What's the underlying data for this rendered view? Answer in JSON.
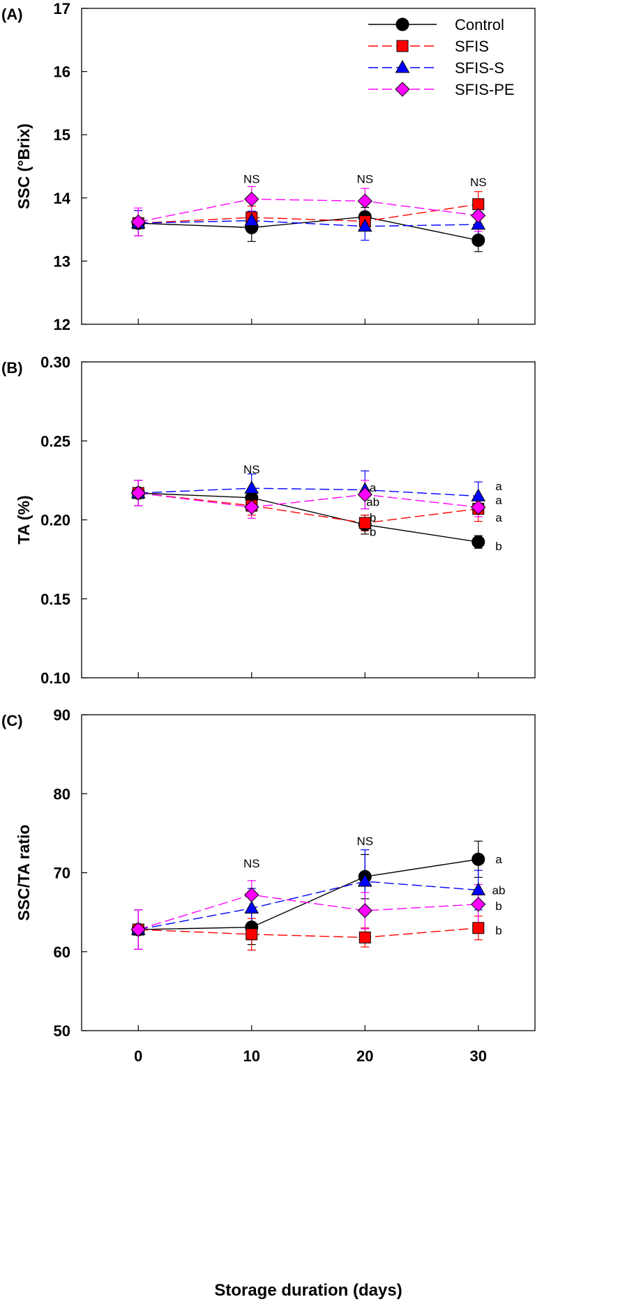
{
  "figure": {
    "xlabel": "Storage duration (days)",
    "legend": {
      "placement": "top-right",
      "entries": [
        {
          "label": "Control",
          "color": "#000000",
          "fill": "#000000",
          "marker": "circle",
          "dash": "solid"
        },
        {
          "label": "SFIS",
          "color": "#ff0000",
          "fill": "#ff0000",
          "marker": "square",
          "dash": "dashed"
        },
        {
          "label": "SFIS-S",
          "color": "#0000ff",
          "fill": "#0000ff",
          "marker": "triangle",
          "dash": "dashed"
        },
        {
          "label": "SFIS-PE",
          "color": "#ff00ff",
          "fill": "#ff00ff",
          "marker": "diamond",
          "dash": "dashed"
        }
      ]
    }
  },
  "chart_data": [
    {
      "type": "line",
      "panel_label": "(A)",
      "ylabel": "SSC (°Brix)",
      "xlabel": "",
      "x": [
        0,
        10,
        20,
        30
      ],
      "xlim": [
        -5,
        35
      ],
      "ylim": [
        12,
        17
      ],
      "xticks": [
        0,
        10,
        20,
        30
      ],
      "yticks": [
        12,
        13,
        14,
        15,
        16,
        17
      ],
      "ytick_labels": [
        "12",
        "13",
        "14",
        "15",
        "16",
        "17"
      ],
      "grid": false,
      "series": [
        {
          "name": "Control",
          "values": [
            13.6,
            13.53,
            13.7,
            13.33
          ],
          "errors": [
            0.2,
            0.22,
            0.15,
            0.18
          ]
        },
        {
          "name": "SFIS",
          "values": [
            13.6,
            13.69,
            13.63,
            13.9
          ],
          "errors": [
            0.2,
            0.18,
            0.15,
            0.2
          ]
        },
        {
          "name": "SFIS-S",
          "values": [
            13.6,
            13.64,
            13.55,
            13.58
          ],
          "errors": [
            0.2,
            0.15,
            0.22,
            0.2
          ]
        },
        {
          "name": "SFIS-PE",
          "values": [
            13.62,
            13.98,
            13.95,
            13.72
          ],
          "errors": [
            0.22,
            0.2,
            0.2,
            0.25
          ]
        }
      ],
      "annotations": [
        {
          "x": 10,
          "y": 14.3,
          "text": "NS"
        },
        {
          "x": 20,
          "y": 14.3,
          "text": "NS"
        },
        {
          "x": 30,
          "y": 14.25,
          "text": "NS"
        }
      ]
    },
    {
      "type": "line",
      "panel_label": "(B)",
      "ylabel": "TA (%)",
      "xlabel": "",
      "x": [
        0,
        10,
        20,
        30
      ],
      "xlim": [
        -5,
        35
      ],
      "ylim": [
        0.1,
        0.3
      ],
      "xticks": [
        0,
        10,
        20,
        30
      ],
      "yticks": [
        0.1,
        0.15,
        0.2,
        0.25,
        0.3
      ],
      "ytick_labels": [
        "0.10",
        "0.15",
        "0.20",
        "0.25",
        "0.30"
      ],
      "grid": false,
      "series": [
        {
          "name": "Control",
          "values": [
            0.217,
            0.214,
            0.197,
            0.186
          ],
          "errors": [
            0.008,
            0.006,
            0.006,
            0.004
          ]
        },
        {
          "name": "SFIS",
          "values": [
            0.217,
            0.209,
            0.198,
            0.207
          ],
          "errors": [
            0.008,
            0.006,
            0.005,
            0.008
          ]
        },
        {
          "name": "SFIS-S",
          "values": [
            0.217,
            0.22,
            0.219,
            0.215
          ],
          "errors": [
            0.008,
            0.009,
            0.012,
            0.009
          ]
        },
        {
          "name": "SFIS-PE",
          "values": [
            0.217,
            0.208,
            0.216,
            0.208
          ],
          "errors": [
            0.008,
            0.007,
            0.009,
            0.006
          ]
        }
      ],
      "annotations": [
        {
          "x": 10,
          "y": 0.232,
          "text": "NS"
        },
        {
          "x": 20.7,
          "y": 0.2205,
          "text": "a"
        },
        {
          "x": 20.7,
          "y": 0.2115,
          "text": "ab"
        },
        {
          "x": 20.7,
          "y": 0.2015,
          "text": "b"
        },
        {
          "x": 20.7,
          "y": 0.1925,
          "text": "b"
        },
        {
          "x": 31.8,
          "y": 0.2215,
          "text": "a"
        },
        {
          "x": 31.8,
          "y": 0.2125,
          "text": "a"
        },
        {
          "x": 31.8,
          "y": 0.2015,
          "text": "a"
        },
        {
          "x": 31.8,
          "y": 0.1835,
          "text": "b"
        }
      ]
    },
    {
      "type": "line",
      "panel_label": "(C)",
      "ylabel": "SSC/TA ratio",
      "xlabel": "Storage duration (days)",
      "x": [
        0,
        10,
        20,
        30
      ],
      "xlim": [
        -5,
        35
      ],
      "ylim": [
        50,
        90
      ],
      "xticks": [
        0,
        10,
        20,
        30
      ],
      "yticks": [
        50,
        60,
        70,
        80,
        90
      ],
      "ytick_labels": [
        "50",
        "60",
        "70",
        "80",
        "90"
      ],
      "grid": false,
      "series": [
        {
          "name": "Control",
          "values": [
            62.8,
            63.1,
            69.5,
            71.7
          ],
          "errors": [
            2.5,
            2.2,
            2.8,
            2.3
          ]
        },
        {
          "name": "SFIS",
          "values": [
            62.8,
            62.2,
            61.8,
            63.0
          ],
          "errors": [
            2.5,
            2.0,
            1.2,
            1.5
          ]
        },
        {
          "name": "SFIS-S",
          "values": [
            62.8,
            65.5,
            68.9,
            67.8
          ],
          "errors": [
            2.5,
            2.5,
            4.0,
            2.5
          ]
        },
        {
          "name": "SFIS-PE",
          "values": [
            62.8,
            67.2,
            65.2,
            66.0
          ],
          "errors": [
            2.5,
            1.8,
            2.3,
            2.5
          ]
        }
      ],
      "annotations": [
        {
          "x": 10,
          "y": 71.2,
          "text": "NS"
        },
        {
          "x": 20,
          "y": 74.0,
          "text": "NS"
        },
        {
          "x": 31.8,
          "y": 71.7,
          "text": "a"
        },
        {
          "x": 31.8,
          "y": 67.8,
          "text": "ab"
        },
        {
          "x": 31.8,
          "y": 65.8,
          "text": "b"
        },
        {
          "x": 31.8,
          "y": 62.7,
          "text": "b"
        }
      ]
    }
  ]
}
